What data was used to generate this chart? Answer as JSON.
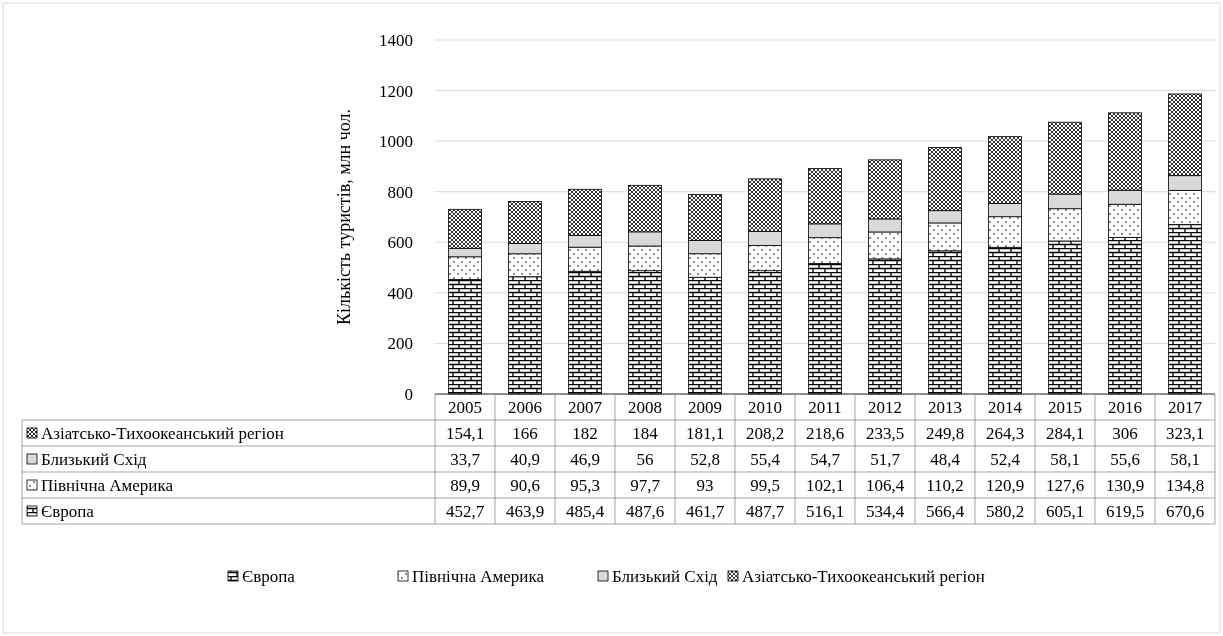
{
  "chart_data": {
    "type": "bar",
    "stacked": true,
    "ylabel": "Кількість туристів, млн чол.",
    "categories": [
      "2005",
      "2006",
      "2007",
      "2008",
      "2009",
      "2010",
      "2011",
      "2012",
      "2013",
      "2014",
      "2015",
      "2016",
      "2017"
    ],
    "series": [
      {
        "name": "Європа",
        "color": "#000000",
        "values": [
          452.7,
          463.9,
          485.4,
          487.6,
          461.7,
          487.7,
          516.1,
          534.4,
          566.4,
          580.2,
          605.1,
          619.5,
          670.6
        ],
        "value_labels": [
          "452,7",
          "463,9",
          "485,4",
          "487,6",
          "461,7",
          "487,7",
          "516,1",
          "534,4",
          "566,4",
          "580,2",
          "605,1",
          "619,5",
          "670,6"
        ]
      },
      {
        "name": "Північна Америка",
        "color": "#000000",
        "values": [
          89.9,
          90.6,
          95.3,
          97.7,
          93,
          99.5,
          102.1,
          106.4,
          110.2,
          120.9,
          127.6,
          130.9,
          134.8
        ],
        "value_labels": [
          "89,9",
          "90,6",
          "95,3",
          "97,7",
          "93",
          "99,5",
          "102,1",
          "106,4",
          "110,2",
          "120,9",
          "127,6",
          "130,9",
          "134,8"
        ]
      },
      {
        "name": "Близький Схід",
        "color": "#d9d9d9",
        "values": [
          33.7,
          40.9,
          46.9,
          56,
          52.8,
          55.4,
          54.7,
          51.7,
          48.4,
          52.4,
          58.1,
          55.6,
          58.1
        ],
        "value_labels": [
          "33,7",
          "40,9",
          "46,9",
          "56",
          "52,8",
          "55,4",
          "54,7",
          "51,7",
          "48,4",
          "52,4",
          "58,1",
          "55,6",
          "58,1"
        ]
      },
      {
        "name": "Азіатсько-Тихоокеанський регіон",
        "color": "#000000",
        "values": [
          154.1,
          166,
          182,
          184,
          181.1,
          208.2,
          218.6,
          233.5,
          249.8,
          264.3,
          284.1,
          306,
          323.1
        ],
        "value_labels": [
          "154,1",
          "166",
          "182",
          "184",
          "181,1",
          "208,2",
          "218,6",
          "233,5",
          "249,8",
          "264,3",
          "284,1",
          "306",
          "323,1"
        ]
      }
    ],
    "ylim": [
      0,
      1400
    ],
    "yticks": [
      0,
      200,
      400,
      600,
      800,
      1000,
      1200,
      1400
    ],
    "grid": "y",
    "legend": "bottom"
  }
}
